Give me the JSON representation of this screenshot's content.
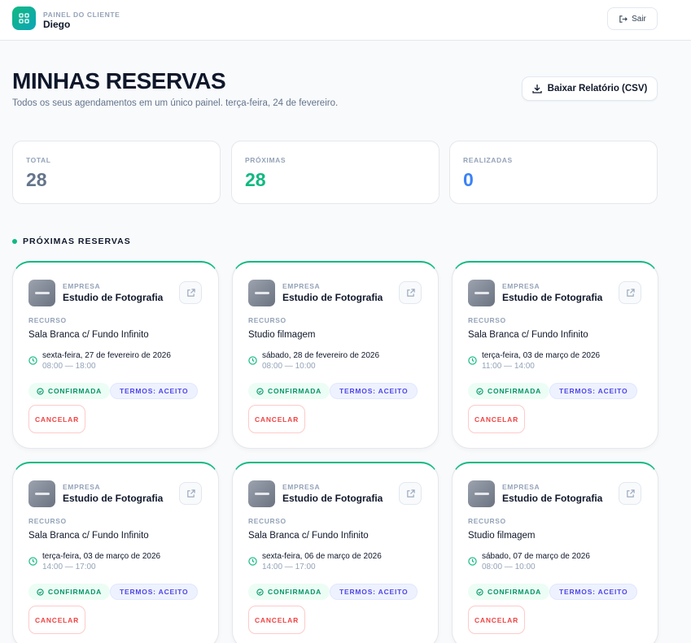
{
  "header": {
    "subtitle": "PAINEL DO CLIENTE",
    "user": "Diego",
    "logout_label": "Sair"
  },
  "page": {
    "title": "MINHAS RESERVAS",
    "description": "Todos os seus agendamentos em um único painel. terça-feira, 24 de fevereiro.",
    "csv_label": "Baixar Relatório (CSV)"
  },
  "stats": [
    {
      "label": "TOTAL",
      "value": "28",
      "color": "#64748b"
    },
    {
      "label": "PRÓXIMAS",
      "value": "28",
      "color": "#10b981"
    },
    {
      "label": "REALIZADAS",
      "value": "0",
      "color": "#3b82f6"
    }
  ],
  "section": {
    "title": "PRÓXIMAS RESERVAS"
  },
  "labels": {
    "company": "EMPRESA",
    "resource": "RECURSO",
    "confirmed": "CONFIRMADA",
    "terms": "TERMOS: ACEITO",
    "cancel": "CANCELAR"
  },
  "bookings": [
    {
      "company": "Estudio de Fotografia",
      "resource": "Sala Branca c/ Fundo Infinito",
      "date": "sexta-feira, 27 de fevereiro de 2026",
      "time": "08:00 — 18:00"
    },
    {
      "company": "Estudio de Fotografia",
      "resource": "Studio filmagem",
      "date": "sábado, 28 de fevereiro de 2026",
      "time": "08:00 — 10:00"
    },
    {
      "company": "Estudio de Fotografia",
      "resource": "Sala Branca c/ Fundo Infinito",
      "date": "terça-feira, 03 de março de 2026",
      "time": "11:00 — 14:00"
    },
    {
      "company": "Estudio de Fotografia",
      "resource": "Sala Branca c/ Fundo Infinito",
      "date": "terça-feira, 03 de março de 2026",
      "time": "14:00 — 17:00"
    },
    {
      "company": "Estudio de Fotografia",
      "resource": "Sala Branca c/ Fundo Infinito",
      "date": "sexta-feira, 06 de março de 2026",
      "time": "14:00 — 17:00"
    },
    {
      "company": "Estudio de Fotografia",
      "resource": "Studio filmagem",
      "date": "sábado, 07 de março de 2026",
      "time": "08:00 — 10:00"
    }
  ]
}
